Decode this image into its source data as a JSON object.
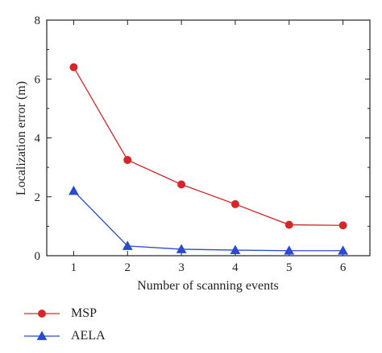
{
  "chart_data": {
    "type": "line",
    "xlabel": "Number of scanning events",
    "ylabel": "Localization error (m)",
    "x": [
      1,
      2,
      3,
      4,
      5,
      6
    ],
    "xlim": [
      0.5,
      6.5
    ],
    "ylim": [
      0,
      8
    ],
    "xticks": [
      "1",
      "2",
      "3",
      "4",
      "5",
      "6"
    ],
    "yticks": [
      "0",
      "2",
      "4",
      "6",
      "8"
    ],
    "grid": false,
    "legend_position": "bottom-left",
    "series": [
      {
        "name": "MSP",
        "marker": "circle",
        "color": "#d62728",
        "values": [
          6.4,
          3.25,
          2.42,
          1.75,
          1.05,
          1.03
        ]
      },
      {
        "name": "AELA",
        "marker": "triangle",
        "color": "#2a49d6",
        "values": [
          2.2,
          0.33,
          0.22,
          0.19,
          0.17,
          0.17
        ]
      }
    ]
  }
}
